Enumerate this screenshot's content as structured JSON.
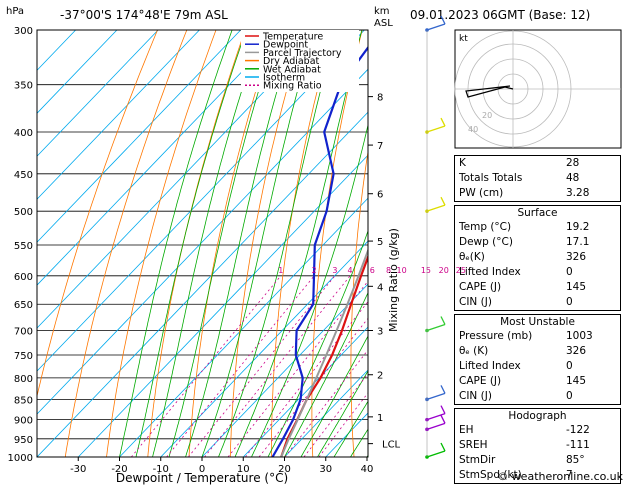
{
  "header": {
    "location": "-37°00'S  174°48'E  79m  ASL",
    "datetime": "09.01.2023  06GMT  (Base: 12)",
    "left_unit": "hPa",
    "right_unit_km": "km",
    "right_unit_asl": "ASL"
  },
  "chart_data": {
    "type": "line",
    "title": "",
    "xlabel": "Dewpoint / Temperature (°C)",
    "ylabel": "hPa",
    "y2label": "Mixing Ratio (g/kg)",
    "xlim": [
      -40,
      40
    ],
    "ylim": [
      1000,
      300
    ],
    "yscale": "log",
    "x_ticks": [
      -30,
      -20,
      -10,
      0,
      10,
      20,
      30,
      40
    ],
    "p_levels": [
      300,
      350,
      400,
      450,
      500,
      550,
      600,
      650,
      700,
      750,
      800,
      850,
      900,
      950,
      1000
    ],
    "km_ticks": [
      {
        "label": "8",
        "p": 362
      },
      {
        "label": "7",
        "p": 415
      },
      {
        "label": "6",
        "p": 476
      },
      {
        "label": "5",
        "p": 544
      },
      {
        "label": "4",
        "p": 618
      },
      {
        "label": "3",
        "p": 700
      },
      {
        "label": "2",
        "p": 793
      },
      {
        "label": "1",
        "p": 893
      },
      {
        "label": "LCL",
        "p": 963
      }
    ],
    "mixing_ratio_labels": [
      "1",
      "2",
      "3",
      "4",
      "6",
      "8",
      "10",
      "15",
      "20",
      "25"
    ],
    "legend": [
      "Temperature",
      "Dewpoint",
      "Parcel Trajectory",
      "Dry Adiabat",
      "Wet Adiabat",
      "Isotherm",
      "Mixing Ratio"
    ],
    "legend_colors": [
      "#dd1111",
      "#1122cc",
      "#999999",
      "#ff7700",
      "#00aa00",
      "#00aaee",
      "#cc0088"
    ],
    "series": [
      {
        "name": "Temperature",
        "p": [
          1000,
          950,
          900,
          850,
          800,
          750,
          700,
          650,
          600,
          550,
          500,
          450,
          400,
          350,
          300
        ],
        "t": [
          19.2,
          16.5,
          14.4,
          12.0,
          10.3,
          7.8,
          4.5,
          0.6,
          -3.6,
          -8.0,
          -13.2,
          -19.4,
          -26.6,
          -35.4,
          -45.0
        ]
      },
      {
        "name": "Dewpoint",
        "p": [
          1000,
          950,
          900,
          850,
          800,
          750,
          700,
          650,
          600,
          550,
          500,
          450,
          400,
          350,
          300
        ],
        "t": [
          17.1,
          15.4,
          13.4,
          10.5,
          6.0,
          -1.0,
          -6.5,
          -8.6,
          -15.0,
          -22.0,
          -27.0,
          -34.0,
          -46.0,
          -53.0,
          -56.0
        ]
      },
      {
        "name": "Parcel Trajectory",
        "p": [
          1000,
          950,
          900,
          850,
          800,
          750,
          700,
          650,
          600,
          550,
          500,
          450,
          400,
          350,
          300
        ],
        "t": [
          19.2,
          16.8,
          14.5,
          12.0,
          9.3,
          6.4,
          3.2,
          -0.3,
          -4.2,
          -8.6,
          -13.6,
          -19.6,
          -26.6,
          -35.0,
          -45.0
        ]
      }
    ]
  },
  "hodograph": {
    "label": "kt",
    "ring_labels": [
      "40",
      "20"
    ]
  },
  "indices": {
    "rows": [
      {
        "k": "K",
        "v": "28"
      },
      {
        "k": "Totals Totals",
        "v": "48"
      },
      {
        "k": "PW (cm)",
        "v": "3.28"
      }
    ]
  },
  "surface": {
    "title": "Surface",
    "rows": [
      {
        "k": "Temp (°C)",
        "v": "19.2"
      },
      {
        "k": "Dewp (°C)",
        "v": "17.1"
      },
      {
        "k": "θₑ(K)",
        "v": "326"
      },
      {
        "k": "Lifted Index",
        "v": "0"
      },
      {
        "k": "CAPE (J)",
        "v": "145"
      },
      {
        "k": "CIN (J)",
        "v": "0"
      }
    ]
  },
  "most_unstable": {
    "title": "Most Unstable",
    "rows": [
      {
        "k": "Pressure (mb)",
        "v": "1003"
      },
      {
        "k": "θₑ (K)",
        "v": "326"
      },
      {
        "k": "Lifted Index",
        "v": "0"
      },
      {
        "k": "CAPE (J)",
        "v": "145"
      },
      {
        "k": "CIN (J)",
        "v": "0"
      }
    ]
  },
  "hodograph_table": {
    "title": "Hodograph",
    "rows": [
      {
        "k": "EH",
        "v": "-122"
      },
      {
        "k": "SREH",
        "v": "-111"
      },
      {
        "k": "StmDir",
        "v": "85°"
      },
      {
        "k": "StmSpd (kt)",
        "v": "7"
      }
    ]
  },
  "footer": "© weatheronline.co.uk"
}
